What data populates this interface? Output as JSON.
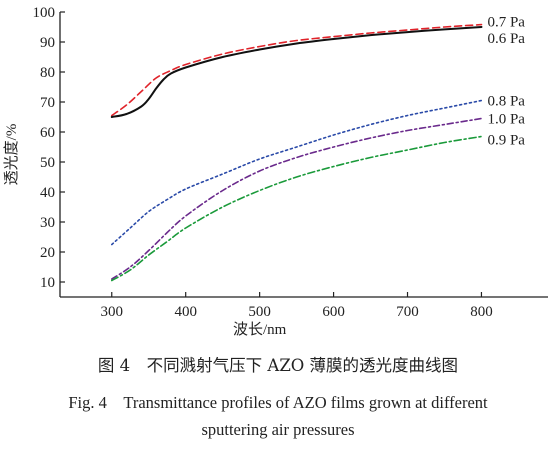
{
  "chart_data": {
    "type": "line",
    "title": "",
    "xlabel": "波长/nm",
    "ylabel": "透光度/%",
    "xlim": [
      230,
      890
    ],
    "ylim": [
      5,
      100
    ],
    "x_ticks": [
      300,
      400,
      500,
      600,
      700,
      800
    ],
    "y_ticks": [
      10,
      20,
      30,
      40,
      50,
      60,
      70,
      80,
      90,
      100
    ],
    "grid": false,
    "legend": "right-end labels",
    "series": [
      {
        "name": "0.7 Pa",
        "color": "#e0232a",
        "dash": "7,4",
        "x": [
          300,
          320,
          340,
          360,
          380,
          400,
          450,
          500,
          550,
          600,
          650,
          700,
          750,
          800
        ],
        "y": [
          65.5,
          69,
          73.5,
          78,
          80.5,
          82.5,
          86,
          88.5,
          90.5,
          91.8,
          93,
          94,
          95,
          95.8
        ]
      },
      {
        "name": "0.6 Pa",
        "color": "#111111",
        "dash": "",
        "x": [
          300,
          320,
          340,
          350,
          360,
          370,
          380,
          400,
          450,
          500,
          550,
          600,
          650,
          700,
          750,
          800
        ],
        "y": [
          65,
          66,
          68.5,
          71,
          74.5,
          77.5,
          79.5,
          81.5,
          85,
          87.5,
          89.5,
          91,
          92.3,
          93.3,
          94.2,
          95
        ]
      },
      {
        "name": "0.8 Pa",
        "color": "#2a4aa8",
        "dash": "2,3",
        "x": [
          300,
          325,
          350,
          375,
          400,
          450,
          500,
          550,
          600,
          650,
          700,
          750,
          800
        ],
        "y": [
          22.5,
          28,
          33.5,
          37.5,
          41,
          46,
          51,
          55,
          59,
          62.5,
          65.5,
          68,
          70.5
        ]
      },
      {
        "name": "1.0 Pa",
        "color": "#6a2a8c",
        "dash": "6,3,2,3",
        "x": [
          300,
          325,
          350,
          375,
          400,
          450,
          500,
          550,
          600,
          650,
          700,
          750,
          800
        ],
        "y": [
          11,
          15,
          20.5,
          26.5,
          32,
          40.5,
          47,
          51.5,
          55,
          58,
          60.5,
          62.5,
          64.5
        ]
      },
      {
        "name": "0.9 Pa",
        "color": "#1a9a3a",
        "dash": "7,3,2,3",
        "x": [
          300,
          325,
          350,
          375,
          400,
          450,
          500,
          550,
          600,
          650,
          700,
          750,
          800
        ],
        "y": [
          10.5,
          14,
          19,
          23.5,
          28,
          35,
          40.5,
          45,
          48.5,
          51.5,
          54,
          56.5,
          58.5
        ]
      }
    ]
  },
  "captions": {
    "cn": "图 4　不同溅射气压下 AZO 薄膜的透光度曲线图",
    "en_line1": "Fig. 4　Transmittance profiles of AZO films grown at different",
    "en_line2": "sputtering air pressures"
  }
}
